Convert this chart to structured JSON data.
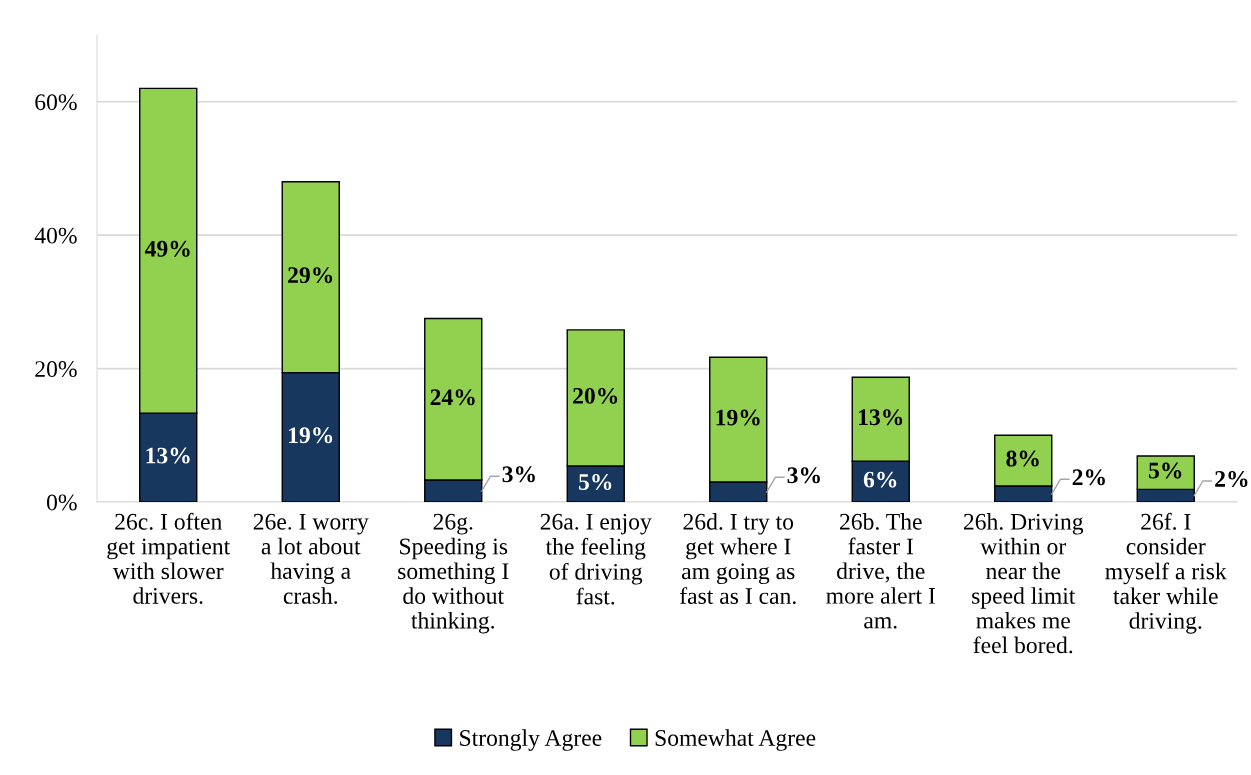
{
  "chart_data": {
    "type": "bar",
    "stacked": true,
    "categories": [
      "26c. I often\nget impatient\nwith slower\ndrivers.",
      "26e. I worry\na lot about\nhaving a\ncrash.",
      "26g.\nSpeeding is\nsomething I\ndo without\nthinking.",
      "26a. I enjoy\nthe feeling\nof driving\nfast.",
      "26d. I try to\nget where I\nam going as\nfast as I can.",
      "26b. The\nfaster I\ndrive, the\nmore alert I\nam.",
      "26h. Driving\nwithin or\nnear the\nspeed limit\nmakes me\nfeel bored.",
      "26f. I\nconsider\nmyself a risk\ntaker while\ndriving."
    ],
    "series": [
      {
        "name": "Strongly Agree",
        "color": "#17375e",
        "values": [
          13.3,
          19.4,
          3.3,
          5.4,
          3.0,
          6.1,
          2.4,
          1.9
        ],
        "value_labels": [
          "13%",
          "19%",
          "3%",
          "5%",
          "3%",
          "6%",
          "2%",
          "2%"
        ]
      },
      {
        "name": "Somewhat Agree",
        "color": "#92d050",
        "values": [
          48.7,
          28.6,
          24.2,
          20.4,
          18.7,
          12.6,
          7.6,
          5.0
        ],
        "value_labels": [
          "49%",
          "29%",
          "24%",
          "20%",
          "19%",
          "13%",
          "8%",
          "5%"
        ]
      }
    ],
    "ylim": [
      0,
      70
    ],
    "yticks": [
      {
        "value": 0,
        "label": "0%"
      },
      {
        "value": 20,
        "label": "20%"
      },
      {
        "value": 40,
        "label": "40%"
      },
      {
        "value": 60,
        "label": "60%"
      }
    ],
    "grid": "y",
    "legend": "bottom"
  }
}
